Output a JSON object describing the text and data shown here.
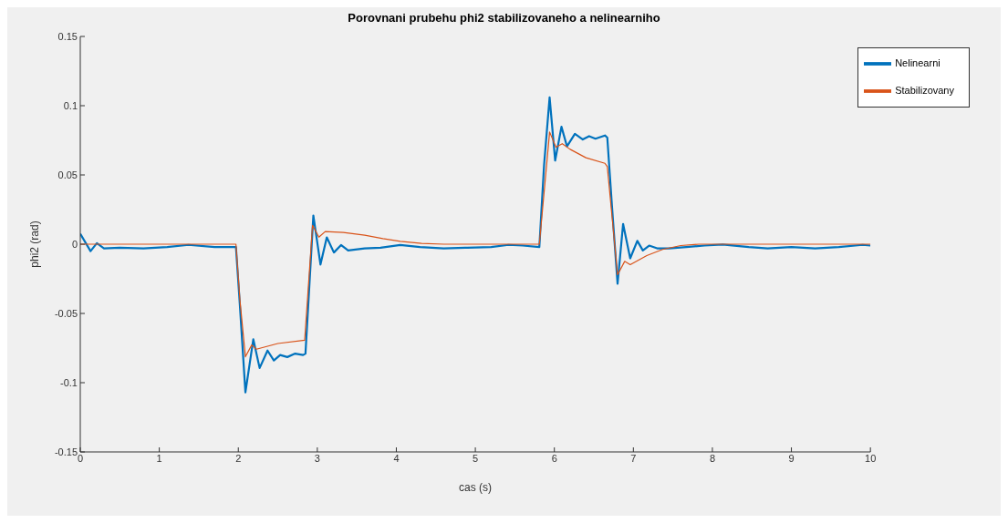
{
  "chart_data": {
    "type": "line",
    "title": "Porovnani prubehu phi2 stabilizovaneho a nelinearniho",
    "xlabel": "cas (s)",
    "ylabel": "phi2 (rad)",
    "xlim": [
      0,
      10
    ],
    "xticks": [
      0,
      1,
      2,
      3,
      4,
      5,
      6,
      7,
      8,
      9,
      10
    ],
    "ylim": [
      -0.15,
      0.15
    ],
    "yticks": [
      -0.15,
      -0.1,
      -0.05,
      0,
      0.05,
      0.1,
      0.15
    ],
    "grid": false,
    "legend": "top right",
    "marker": "none",
    "line_style": "solid",
    "series": [
      {
        "name": "Nelinearni",
        "color": "#0072bd",
        "x": [
          0,
          0.13,
          0.21,
          0.3,
          0.5,
          0.8,
          1.1,
          1.37,
          1.7,
          1.97,
          2.02,
          2.09,
          2.19,
          2.27,
          2.37,
          2.45,
          2.53,
          2.62,
          2.72,
          2.82,
          2.85,
          2.95,
          3.04,
          3.12,
          3.21,
          3.3,
          3.39,
          3.6,
          3.8,
          4.05,
          4.3,
          4.6,
          4.9,
          5.2,
          5.42,
          5.6,
          5.81,
          5.87,
          5.94,
          6.01,
          6.09,
          6.16,
          6.26,
          6.36,
          6.44,
          6.52,
          6.64,
          6.67,
          6.73,
          6.8,
          6.87,
          6.96,
          7.05,
          7.12,
          7.2,
          7.3,
          7.45,
          7.67,
          7.9,
          8.13,
          8.46,
          8.7,
          9.0,
          9.3,
          9.6,
          9.9,
          10
        ],
        "values": [
          0.0075,
          -0.005,
          0.0007,
          -0.003,
          -0.0025,
          -0.003,
          -0.002,
          -0.0005,
          -0.002,
          -0.002,
          -0.044,
          -0.107,
          -0.0687,
          -0.0894,
          -0.0768,
          -0.084,
          -0.08,
          -0.0815,
          -0.079,
          -0.08,
          -0.079,
          0.0207,
          -0.0147,
          0.0049,
          -0.006,
          -0.0006,
          -0.0045,
          -0.003,
          -0.0025,
          -0.0006,
          -0.002,
          -0.003,
          -0.0025,
          -0.002,
          -0.0005,
          -0.001,
          -0.002,
          0.0573,
          0.106,
          0.0604,
          0.0848,
          0.0706,
          0.0797,
          0.0756,
          0.078,
          0.0762,
          0.0785,
          0.077,
          0.0268,
          -0.0285,
          0.0146,
          -0.0102,
          0.0024,
          -0.0045,
          -0.001,
          -0.003,
          -0.003,
          -0.002,
          -0.001,
          -0.0002,
          -0.002,
          -0.003,
          -0.002,
          -0.003,
          -0.002,
          -0.0005,
          -0.001
        ]
      },
      {
        "name": "Stabilizovany",
        "color": "#d95319",
        "x": [
          0,
          1.97,
          2.02,
          2.09,
          2.17,
          2.23,
          2.5,
          2.84,
          2.94,
          3.02,
          3.1,
          3.33,
          3.6,
          3.83,
          4.05,
          4.32,
          4.6,
          5.81,
          5.94,
          6.02,
          6.1,
          6.2,
          6.4,
          6.64,
          6.67,
          6.8,
          6.89,
          6.96,
          7.17,
          7.37,
          7.6,
          7.83,
          10
        ],
        "values": [
          0,
          0,
          -0.04,
          -0.0813,
          -0.0728,
          -0.0758,
          -0.0717,
          -0.0693,
          0.0136,
          0.0051,
          0.0091,
          0.0085,
          0.0065,
          0.004,
          0.002,
          0.0006,
          0,
          0,
          0.081,
          0.07,
          0.0726,
          0.0685,
          0.0624,
          0.0584,
          0.056,
          -0.022,
          -0.0124,
          -0.0148,
          -0.0082,
          -0.0038,
          -0.001,
          0,
          0
        ]
      }
    ]
  }
}
